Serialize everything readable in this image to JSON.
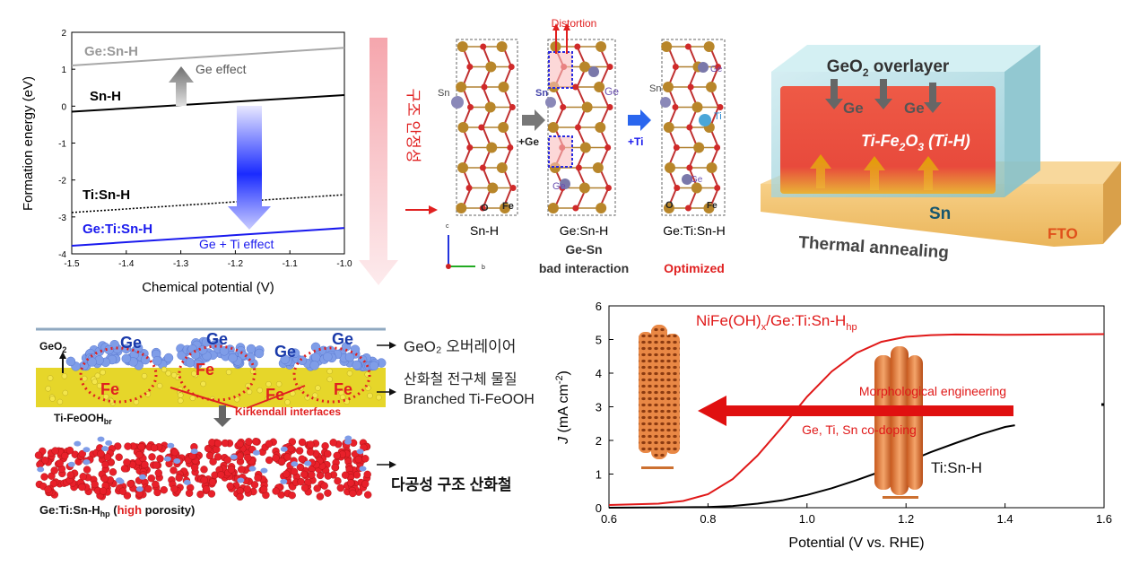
{
  "formation_chart": {
    "ylabel": "Formation energy (eV)",
    "xlabel": "Chemical potential (V)",
    "xticks": [
      "-1.5",
      "-1.4",
      "-1.3",
      "-1.2",
      "-1.1",
      "-1.0"
    ],
    "yticks": [
      "2",
      "1",
      "0",
      "-1",
      "-2",
      "-3",
      "-4"
    ],
    "series": {
      "ge_sn_h": "Ge:Sn-H",
      "sn_h": "Sn-H",
      "ti_sn_h": "Ti:Sn-H",
      "ge_ti_sn_h": "Ge:Ti:Sn-H"
    },
    "annotations": {
      "ge_effect": "Ge effect",
      "ge_ti_effect": "Ge + Ti effect"
    }
  },
  "vertical_arrow_text": "구조 안정성",
  "structures": {
    "distortion": "Distortion",
    "sn_h": "Sn-H",
    "ge_sn_h": "Ge:Sn-H",
    "ge_ti_sn_h": "Ge:Ti:Sn-H",
    "bad_line1": "Ge-Sn",
    "bad_line2": "bad interaction",
    "optimized": "Optimized",
    "plus_ge": "+Ge",
    "plus_ti": "+Ti",
    "atoms": {
      "sn": "Sn",
      "o": "O",
      "fe": "Fe",
      "ge": "Ge",
      "ti": "Ti"
    },
    "axes": {
      "c": "c",
      "b": "b"
    }
  },
  "film": {
    "geo2_overlayer": "GeO",
    "geo2_sub": "2",
    "geo2_rest": " overlayer",
    "ge": "Ge",
    "ti_fe2o3_a": "Ti-Fe",
    "ti_fe2o3_s1": "2",
    "ti_fe2o3_b": "O",
    "ti_fe2o3_s2": "3",
    "ti_fe2o3_c": " (Ti-H)",
    "sn": "Sn",
    "fto": "FTO",
    "thermal": "Thermal annealing"
  },
  "morph": {
    "geo2_a": "GeO",
    "geo2_s": "2",
    "geo2_kor": "GeO₂ 오버레이어",
    "precursor_kor": "산화철 전구체 물질",
    "branched": "Branched Ti-FeOOH",
    "ge": "Ge",
    "fe": "Fe",
    "tifeooh_a": "Ti-FeOOH",
    "tifeooh_s": "br",
    "kirkendall": "Kirkendall interfaces",
    "porous_kor": "다공성 구조 산화철",
    "final_a": "Ge:Ti:Sn-H",
    "final_s": "hp",
    "final_b": " (",
    "final_high": "high",
    "final_c": " porosity)"
  },
  "jv_chart": {
    "ylabel_a": "J",
    "ylabel_b": " (mA cm",
    "ylabel_sup": "-2",
    "ylabel_c": ")",
    "xlabel": "Potential (V vs. RHE)",
    "xticks": [
      "0.6",
      "0.8",
      "1.0",
      "1.2",
      "1.4",
      "1.6"
    ],
    "yticks": [
      "0",
      "1",
      "2",
      "3",
      "4",
      "5",
      "6"
    ],
    "red_a": "NiFe(OH)",
    "red_x": "x",
    "red_b": "/Ge:Ti:Sn-H",
    "red_hp": "hp",
    "black_label": "Ti:Sn-H",
    "arrow_top": "Morphological engineering",
    "arrow_bottom": "Ge, Ti, Sn co-doping"
  },
  "chart_data": [
    {
      "type": "line",
      "title": "",
      "xlabel": "Chemical potential (V)",
      "ylabel": "Formation energy (eV)",
      "xlim": [
        -1.5,
        -1.0
      ],
      "ylim": [
        -4,
        2
      ],
      "series": [
        {
          "name": "Ge:Sn-H",
          "x": [
            -1.5,
            -1.0
          ],
          "y": [
            1.1,
            1.58
          ]
        },
        {
          "name": "Sn-H",
          "x": [
            -1.5,
            -1.0
          ],
          "y": [
            -0.15,
            0.3
          ]
        },
        {
          "name": "Ti:Sn-H",
          "x": [
            -1.5,
            -1.0
          ],
          "y": [
            -2.88,
            -2.4
          ]
        },
        {
          "name": "Ge:Ti:Sn-H",
          "x": [
            -1.5,
            -1.0
          ],
          "y": [
            -3.78,
            -3.3
          ]
        }
      ]
    },
    {
      "type": "line",
      "title": "",
      "xlabel": "Potential (V vs. RHE)",
      "ylabel": "J (mA cm-2)",
      "xlim": [
        0.6,
        1.6
      ],
      "ylim": [
        0,
        6
      ],
      "series": [
        {
          "name": "NiFe(OH)x/Ge:Ti:Sn-Hhp",
          "x": [
            0.6,
            0.7,
            0.75,
            0.8,
            0.85,
            0.9,
            0.95,
            1.0,
            1.05,
            1.1,
            1.15,
            1.2,
            1.25,
            1.3,
            1.4,
            1.5,
            1.6
          ],
          "y": [
            0.08,
            0.12,
            0.2,
            0.4,
            0.85,
            1.55,
            2.4,
            3.3,
            4.05,
            4.6,
            4.93,
            5.08,
            5.13,
            5.15,
            5.14,
            5.15,
            5.16
          ]
        },
        {
          "name": "Ti:Sn-H",
          "x": [
            0.6,
            0.8,
            0.85,
            0.9,
            0.95,
            1.0,
            1.05,
            1.1,
            1.15,
            1.2,
            1.25,
            1.3,
            1.35,
            1.4,
            1.42
          ],
          "y": [
            0.0,
            0.02,
            0.05,
            0.12,
            0.22,
            0.38,
            0.58,
            0.82,
            1.08,
            1.35,
            1.65,
            1.92,
            2.18,
            2.4,
            2.45
          ]
        }
      ]
    }
  ]
}
